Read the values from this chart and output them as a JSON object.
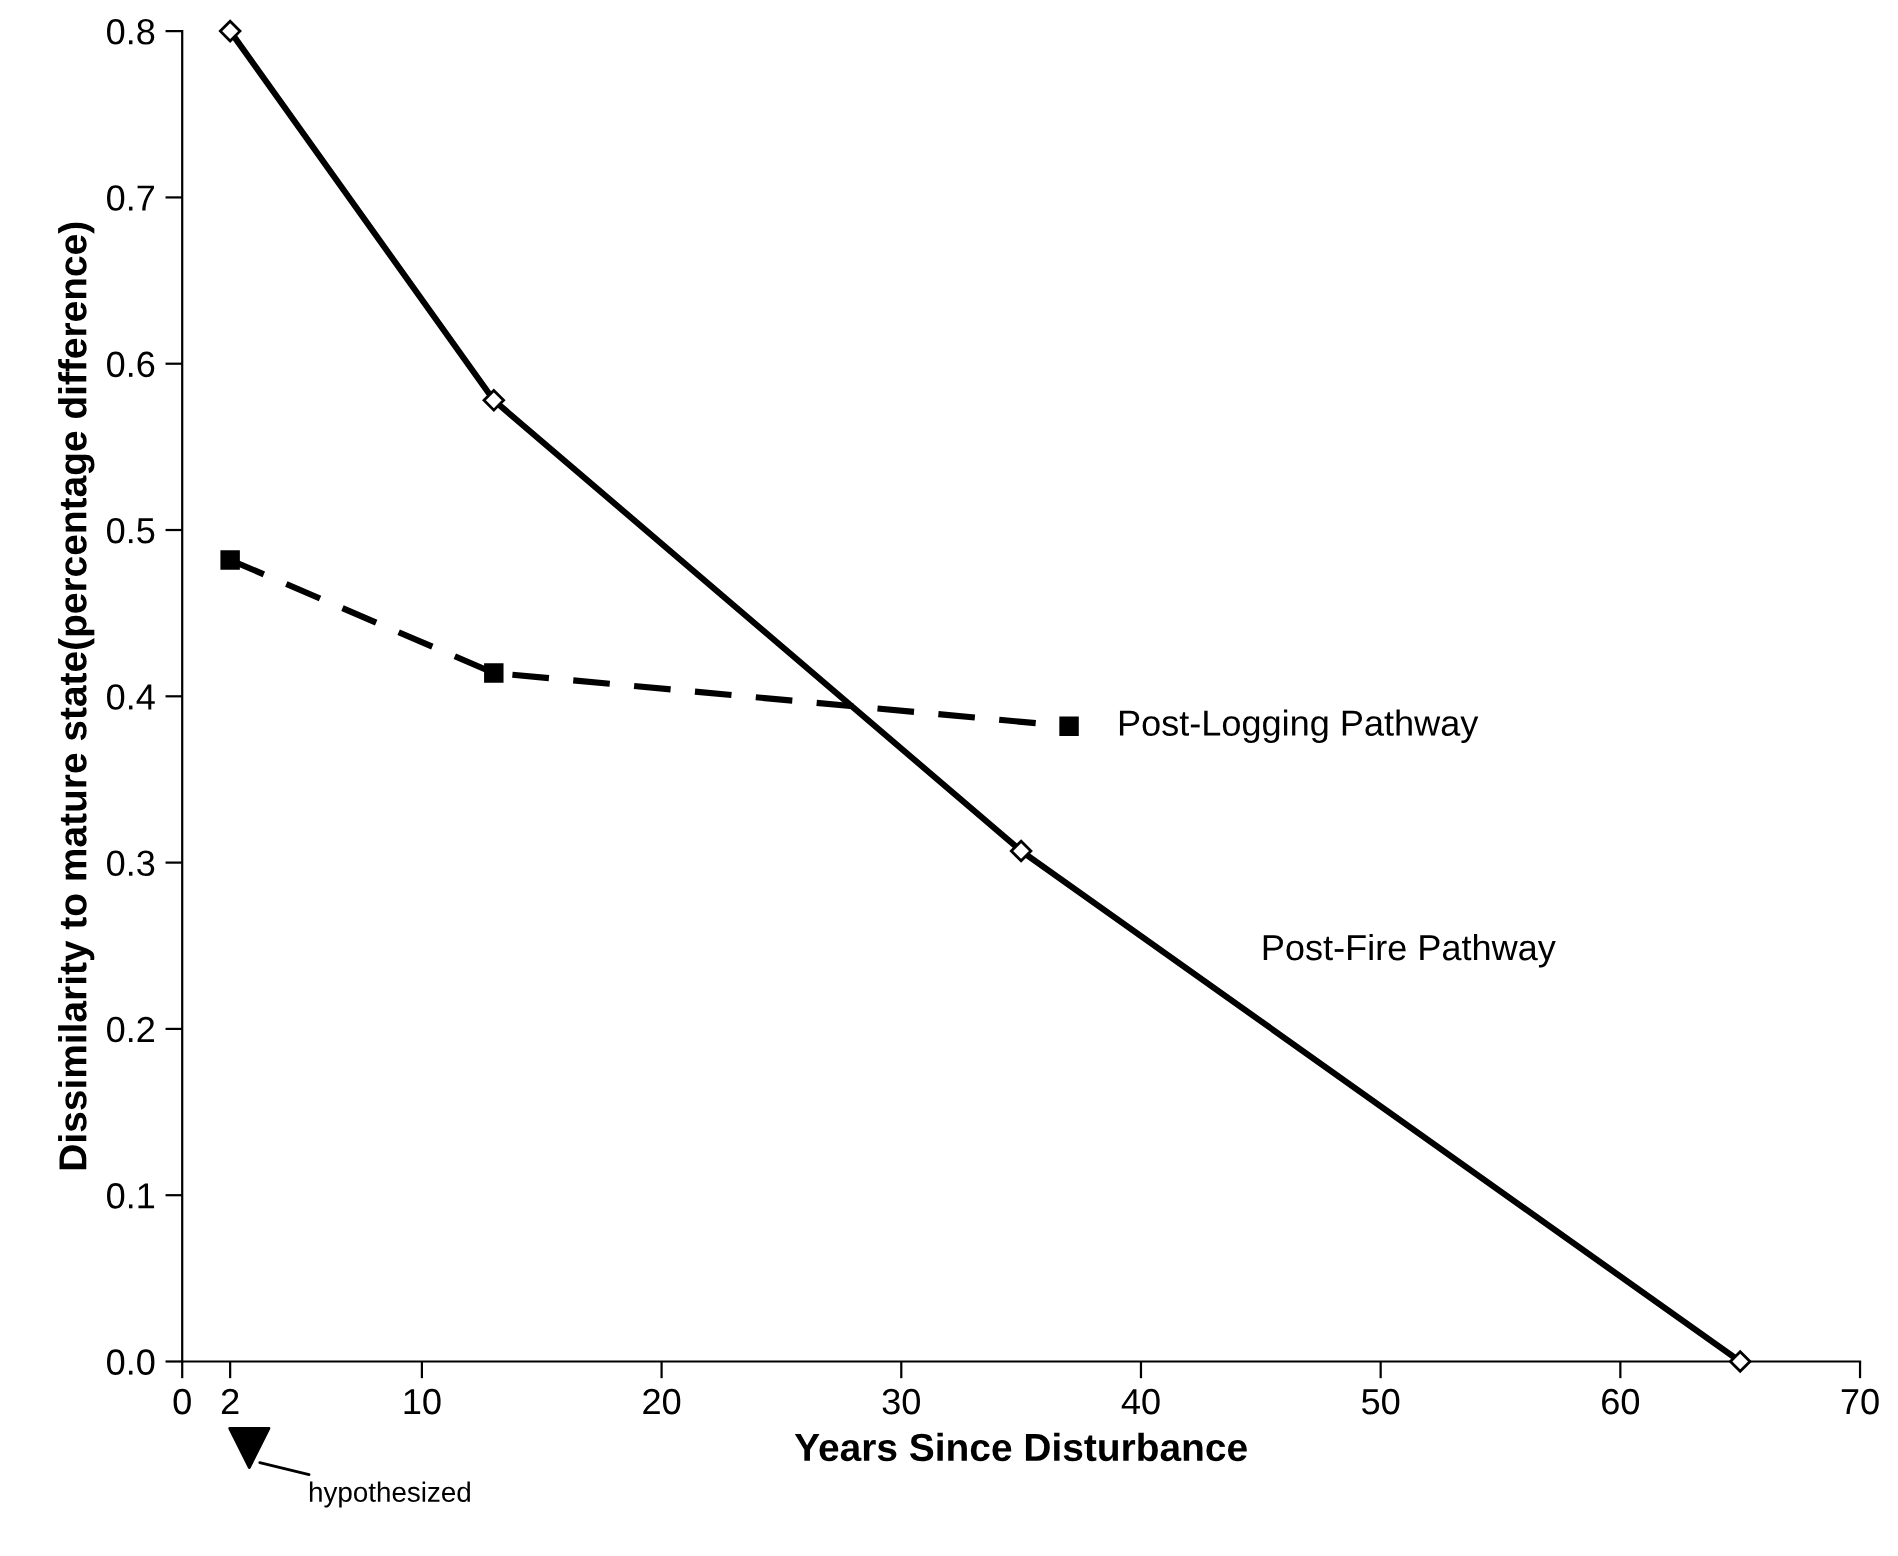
{
  "chart_data": {
    "type": "line",
    "xlabel": "Years Since Disturbance",
    "ylabel": "Dissimilarity to mature state(percentage difference)",
    "series": [
      {
        "name": "Post-Fire Pathway",
        "color": "#000000",
        "x": [
          2,
          13,
          35,
          65
        ],
        "values": [
          0.8,
          0.578,
          0.307,
          0.0
        ],
        "marker": "diamond",
        "line_style": "solid"
      },
      {
        "name": "Post-Logging Pathway",
        "color": "#000000",
        "x": [
          2,
          13,
          37
        ],
        "values": [
          0.482,
          0.414,
          0.382
        ],
        "marker": "square",
        "line_style": "dashed"
      }
    ],
    "annotations": [
      "hypothesized"
    ],
    "xlim": [
      0,
      70
    ],
    "ylim": [
      0,
      0.8
    ],
    "xticks": [
      0,
      2,
      10,
      20,
      30,
      40,
      50,
      60,
      70
    ],
    "yticks": [
      {
        "value": 0,
        "label": "0.0"
      },
      0.1,
      0.2,
      0.3,
      0.4,
      0.5,
      0.6,
      0.7,
      0.8
    ],
    "grid": false,
    "legend": false
  }
}
